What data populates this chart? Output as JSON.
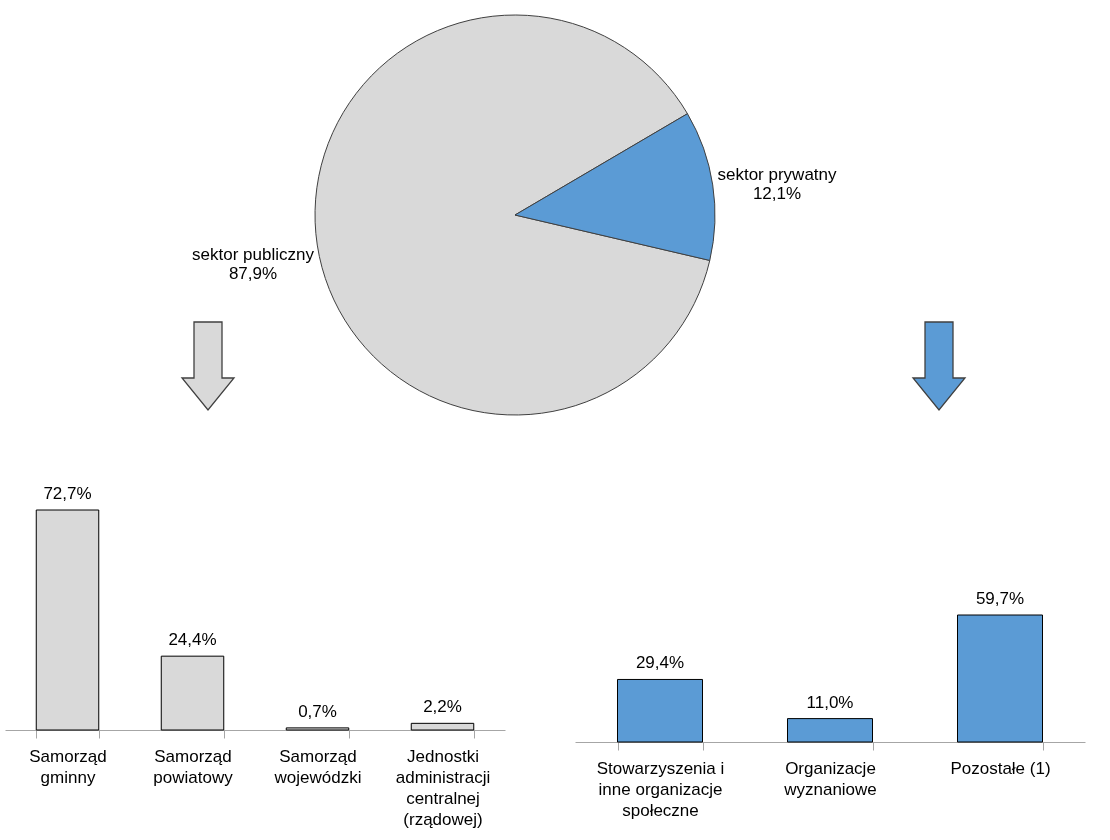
{
  "chart_data": [
    {
      "type": "pie",
      "categories": [
        "sektor publiczny",
        "sektor prywatny"
      ],
      "values": [
        87.9,
        12.1
      ],
      "colors": [
        "#d9d9d9",
        "#5b9bd5"
      ],
      "value_labels": [
        "87,9%",
        "12,1%"
      ]
    },
    {
      "type": "bar",
      "categories": [
        "Samorząd\ngminny",
        "Samorząd\npowiatowy",
        "Samorząd\nwojewódzki",
        "Jednostki\nadministracji\ncentralnej\n(rządowej)"
      ],
      "values": [
        72.7,
        24.4,
        0.7,
        2.2
      ],
      "color": "#d9d9d9",
      "value_labels": [
        "72,7%",
        "24,4%",
        "0,7%",
        "2,2%"
      ],
      "tick_labels": "x"
    },
    {
      "type": "bar",
      "categories": [
        "Stowarzyszenia i\ninne organizacje\nspołeczne",
        "Organizacje\nwyznaniowe",
        "Pozostałe (1)"
      ],
      "values": [
        29.4,
        11.0,
        59.7
      ],
      "color": "#5b9bd5",
      "value_labels": [
        "29,4%",
        "11,0%",
        "59,7%"
      ],
      "tick_labels": "x"
    }
  ]
}
